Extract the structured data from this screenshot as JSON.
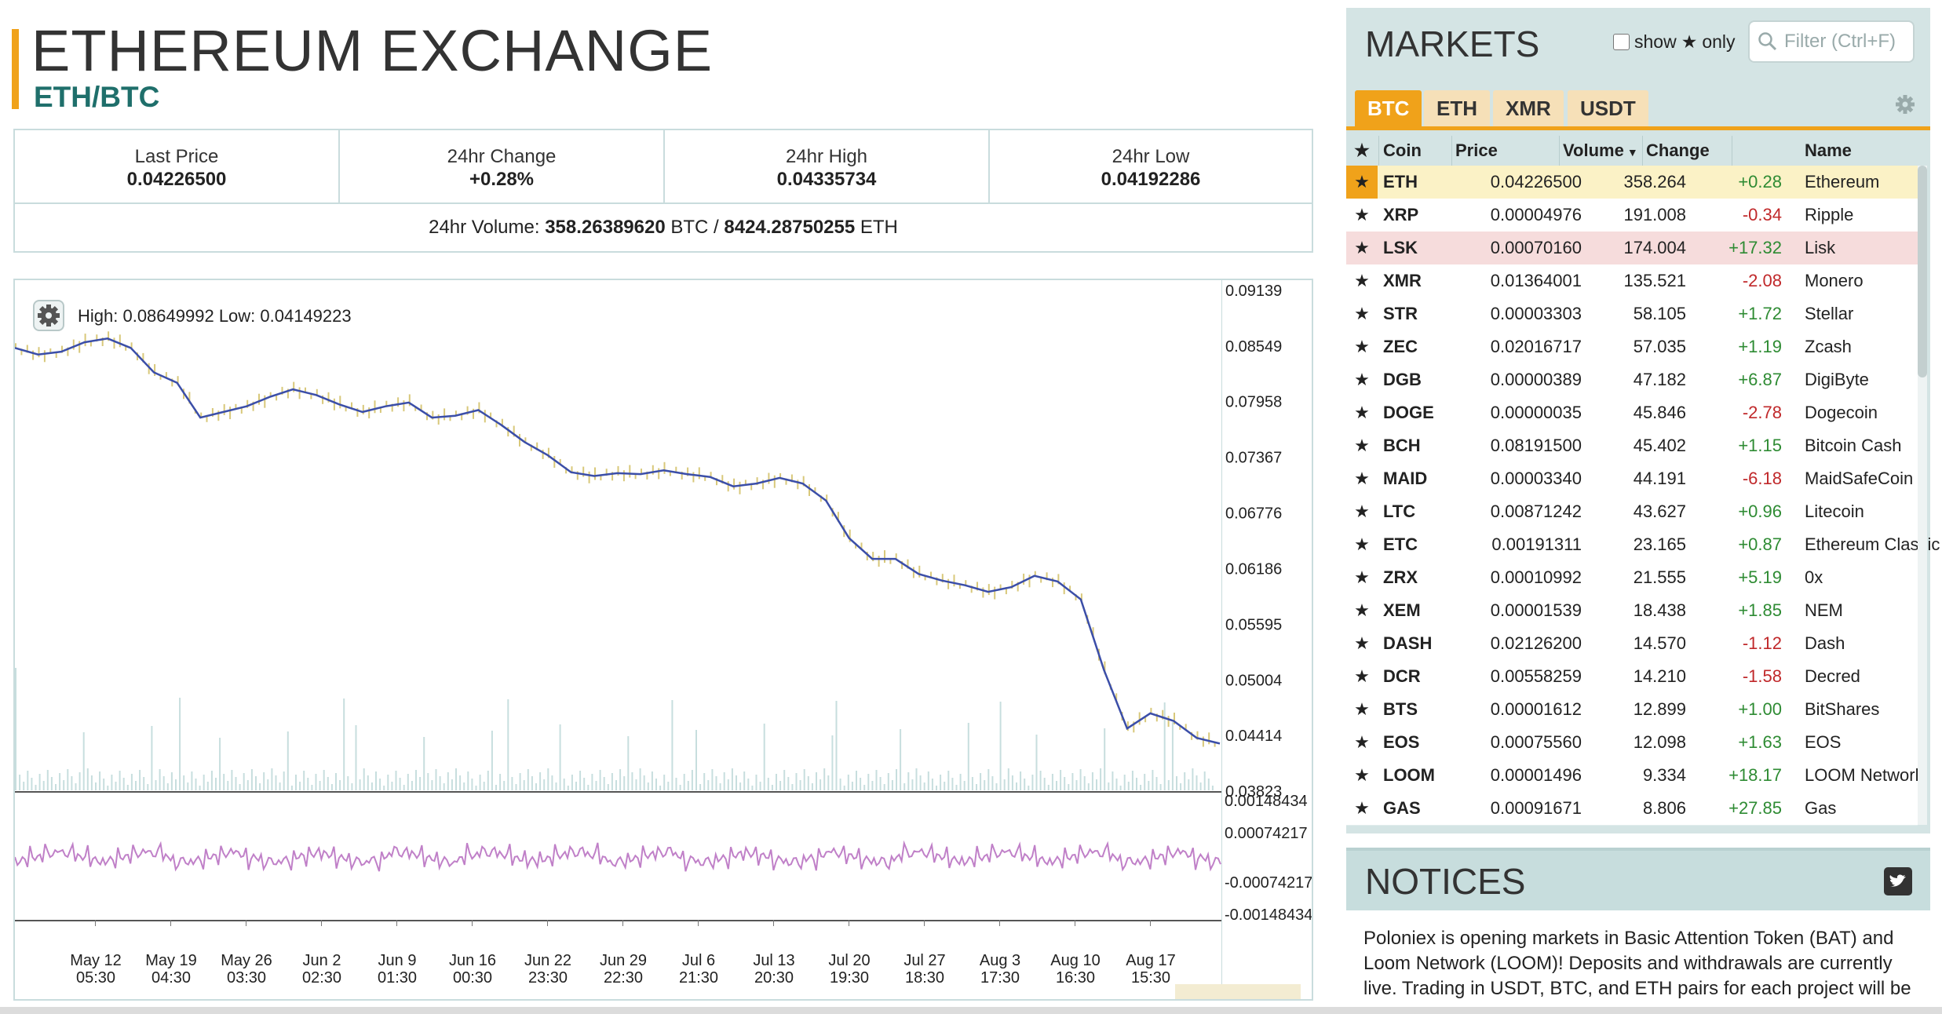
{
  "header": {
    "title": "ETHEREUM EXCHANGE",
    "pair": "ETH/BTC"
  },
  "stats": {
    "last_price": {
      "label": "Last Price",
      "value": "0.04226500"
    },
    "change_24h": {
      "label": "24hr Change",
      "value": "+0.28%"
    },
    "high_24h": {
      "label": "24hr High",
      "value": "0.04335734"
    },
    "low_24h": {
      "label": "24hr Low",
      "value": "0.04192286"
    },
    "volume": {
      "label": "24hr Volume:",
      "btc": "358.26389620",
      "btc_unit": "BTC /",
      "eth": "8424.28750255",
      "eth_unit": "ETH"
    }
  },
  "chart": {
    "highlow": "High: 0.08649992  Low: 0.04149223",
    "price_axis": [
      "0.09139",
      "0.08549",
      "0.07958",
      "0.07367",
      "0.06776",
      "0.06186",
      "0.05595",
      "0.05004",
      "0.04414",
      "0.03823"
    ],
    "osc_axis": [
      "0.00148434",
      "0.00074217",
      "-0.00074217",
      "-0.00148434"
    ],
    "x_labels": [
      [
        "May 12",
        "05:30"
      ],
      [
        "May 19",
        "04:30"
      ],
      [
        "May 26",
        "03:30"
      ],
      [
        "Jun 2",
        "02:30"
      ],
      [
        "Jun 9",
        "01:30"
      ],
      [
        "Jun 16",
        "00:30"
      ],
      [
        "Jun 22",
        "23:30"
      ],
      [
        "Jun 29",
        "22:30"
      ],
      [
        "Jul 6",
        "21:30"
      ],
      [
        "Jul 13",
        "20:30"
      ],
      [
        "Jul 20",
        "19:30"
      ],
      [
        "Jul 27",
        "18:30"
      ],
      [
        "Aug 3",
        "17:30"
      ],
      [
        "Aug 10",
        "16:30"
      ],
      [
        "Aug 17",
        "15:30"
      ]
    ],
    "colors": {
      "price_line": "#3b4ea8",
      "candle": "#d8c87a",
      "volume": "#c7dede",
      "osc": "#c080c8"
    }
  },
  "chart_data": {
    "type": "line",
    "series": [
      {
        "values": [
          0.0852,
          0.0845,
          0.0848,
          0.0858,
          0.0862,
          0.0852,
          0.0826,
          0.0815,
          0.0778,
          0.0784,
          0.079,
          0.08,
          0.0808,
          0.0802,
          0.0792,
          0.0784,
          0.079,
          0.0794,
          0.0778,
          0.078,
          0.0786,
          0.077,
          0.0752,
          0.0738,
          0.072,
          0.0716,
          0.0719,
          0.0718,
          0.0722,
          0.0718,
          0.0715,
          0.0705,
          0.0708,
          0.0714,
          0.0708,
          0.069,
          0.065,
          0.0628,
          0.0628,
          0.0612,
          0.0605,
          0.06,
          0.0593,
          0.0598,
          0.061,
          0.0604,
          0.0585,
          0.051,
          0.0448,
          0.0464,
          0.0456,
          0.0438,
          0.0432
        ]
      }
    ],
    "ylim": [
      0.03823,
      0.09139
    ]
  },
  "markets": {
    "title": "MARKETS",
    "show_label": "show",
    "only_label": "only",
    "filter_placeholder": "Filter (Ctrl+F)",
    "tabs": [
      "BTC",
      "ETH",
      "XMR",
      "USDT"
    ],
    "columns": {
      "coin": "Coin",
      "price": "Price",
      "volume": "Volume",
      "change": "Change",
      "name": "Name"
    },
    "rows": [
      {
        "coin": "ETH",
        "price": "0.04226500",
        "volume": "358.264",
        "change": "+0.28",
        "name": "Ethereum"
      },
      {
        "coin": "XRP",
        "price": "0.00004976",
        "volume": "191.008",
        "change": "-0.34",
        "name": "Ripple"
      },
      {
        "coin": "LSK",
        "price": "0.00070160",
        "volume": "174.004",
        "change": "+17.32",
        "name": "Lisk"
      },
      {
        "coin": "XMR",
        "price": "0.01364001",
        "volume": "135.521",
        "change": "-2.08",
        "name": "Monero"
      },
      {
        "coin": "STR",
        "price": "0.00003303",
        "volume": "58.105",
        "change": "+1.72",
        "name": "Stellar"
      },
      {
        "coin": "ZEC",
        "price": "0.02016717",
        "volume": "57.035",
        "change": "+1.19",
        "name": "Zcash"
      },
      {
        "coin": "DGB",
        "price": "0.00000389",
        "volume": "47.182",
        "change": "+6.87",
        "name": "DigiByte"
      },
      {
        "coin": "DOGE",
        "price": "0.00000035",
        "volume": "45.846",
        "change": "-2.78",
        "name": "Dogecoin"
      },
      {
        "coin": "BCH",
        "price": "0.08191500",
        "volume": "45.402",
        "change": "+1.15",
        "name": "Bitcoin Cash"
      },
      {
        "coin": "MAID",
        "price": "0.00003340",
        "volume": "44.191",
        "change": "-6.18",
        "name": "MaidSafeCoin"
      },
      {
        "coin": "LTC",
        "price": "0.00871242",
        "volume": "43.627",
        "change": "+0.96",
        "name": "Litecoin"
      },
      {
        "coin": "ETC",
        "price": "0.00191311",
        "volume": "23.165",
        "change": "+0.87",
        "name": "Ethereum Classic"
      },
      {
        "coin": "ZRX",
        "price": "0.00010992",
        "volume": "21.555",
        "change": "+5.19",
        "name": "0x"
      },
      {
        "coin": "XEM",
        "price": "0.00001539",
        "volume": "18.438",
        "change": "+1.85",
        "name": "NEM"
      },
      {
        "coin": "DASH",
        "price": "0.02126200",
        "volume": "14.570",
        "change": "-1.12",
        "name": "Dash"
      },
      {
        "coin": "DCR",
        "price": "0.00558259",
        "volume": "14.210",
        "change": "-1.58",
        "name": "Decred"
      },
      {
        "coin": "BTS",
        "price": "0.00001612",
        "volume": "12.899",
        "change": "+1.00",
        "name": "BitShares"
      },
      {
        "coin": "EOS",
        "price": "0.00075560",
        "volume": "12.098",
        "change": "+1.63",
        "name": "EOS"
      },
      {
        "coin": "LOOM",
        "price": "0.00001496",
        "volume": "9.334",
        "change": "+18.17",
        "name": "LOOM Network"
      },
      {
        "coin": "GAS",
        "price": "0.00091671",
        "volume": "8.806",
        "change": "+27.85",
        "name": "Gas"
      }
    ]
  },
  "notices": {
    "title": "NOTICES",
    "text": "Poloniex is opening markets in Basic Attention Token (BAT) and Loom Network (LOOM)! Deposits and withdrawals are currently live. Trading in USDT, BTC, and ETH pairs for each project will be"
  }
}
